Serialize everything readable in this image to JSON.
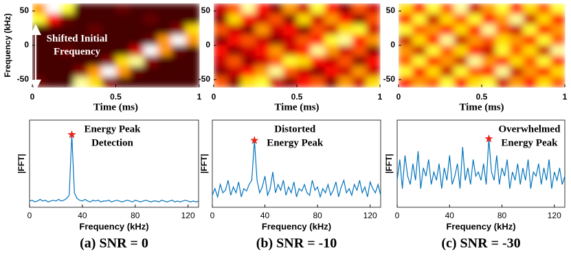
{
  "chart_data": [
    {
      "type": "heatmap",
      "colormap": "hot",
      "xlabel": "Time (ms)",
      "ylabel": "Frequency (kHz)",
      "xlim": [
        0,
        1
      ],
      "ylim": [
        -61,
        61
      ],
      "xticks": [
        0,
        0.5,
        1
      ],
      "yticks": [
        -50,
        0,
        50
      ],
      "annotation": [
        "Shifted Initial",
        "Frequency"
      ],
      "values": [
        [
          0.6,
          1,
          0.8,
          0.1,
          0.1,
          0.1,
          0.15,
          0.1,
          0.1,
          0.1,
          0.1,
          0.1
        ],
        [
          0.8,
          0.4,
          0.15,
          0.1,
          0.1,
          0.1,
          0.1,
          0.1,
          0.15,
          0.1,
          0.1,
          0.1
        ],
        [
          0.1,
          0.1,
          0.1,
          0.1,
          0.15,
          0.1,
          0.1,
          0.1,
          0.1,
          0.1,
          0.2,
          0.7
        ],
        [
          0.1,
          0.1,
          0.1,
          0.1,
          0.1,
          0.1,
          0.1,
          0.1,
          0.15,
          0.6,
          1,
          0.6
        ],
        [
          0.1,
          0.1,
          0.15,
          0.1,
          0.1,
          0.1,
          0.1,
          0.3,
          1,
          0.6,
          0.15,
          0.1
        ],
        [
          0.1,
          0.1,
          0.1,
          0.1,
          0.1,
          0.2,
          0.7,
          0.9,
          0.2,
          0.1,
          0.1,
          0.1
        ],
        [
          0.1,
          0.1,
          0.1,
          0.2,
          0.6,
          1,
          0.6,
          0.15,
          0.1,
          0.1,
          0.1,
          0.1
        ],
        [
          0.15,
          0.1,
          0.1,
          0.9,
          0.7,
          0.2,
          0.1,
          0.1,
          0.1,
          0.1,
          0.1,
          0.1
        ]
      ]
    },
    {
      "type": "heatmap",
      "colormap": "hot",
      "xlabel": "Time (ms)",
      "xlim": [
        0,
        1
      ],
      "ylim": [
        -61,
        61
      ],
      "xticks": [
        0,
        0.5,
        1
      ],
      "yticks": [
        -50,
        0,
        50
      ],
      "values": [
        [
          0.3,
          0.5,
          0.9,
          0.4,
          0.2,
          0.6,
          0.3,
          0.8,
          0.4,
          0.2,
          0.5,
          0.3
        ],
        [
          0.2,
          0.7,
          0.4,
          0.3,
          0.5,
          0.2,
          0.7,
          0.3,
          0.6,
          0.4,
          0.2,
          0.5
        ],
        [
          0.5,
          0.3,
          0.2,
          0.6,
          0.3,
          0.4,
          0.2,
          0.5,
          0.3,
          0.7,
          0.8,
          0.3
        ],
        [
          0.2,
          0.4,
          0.5,
          0.3,
          0.2,
          0.3,
          0.5,
          0.4,
          0.8,
          0.9,
          0.4,
          0.6
        ],
        [
          0.4,
          0.2,
          0.3,
          0.4,
          0.6,
          0.3,
          0.4,
          0.9,
          0.6,
          0.3,
          0.5,
          0.2
        ],
        [
          0.3,
          0.5,
          0.2,
          0.3,
          0.5,
          0.8,
          0.7,
          0.4,
          0.3,
          0.5,
          0.2,
          0.4
        ],
        [
          0.2,
          0.3,
          0.4,
          0.6,
          0.9,
          0.5,
          0.3,
          0.2,
          0.4,
          0.3,
          0.6,
          0.3
        ],
        [
          0.5,
          0.2,
          0.7,
          0.8,
          0.3,
          0.2,
          0.4,
          0.5,
          0.2,
          0.6,
          0.3,
          0.7
        ]
      ]
    },
    {
      "type": "heatmap",
      "colormap": "hot",
      "xlabel": "Time (ms)",
      "xlim": [
        0,
        1
      ],
      "ylim": [
        -61,
        61
      ],
      "xticks": [
        0,
        0.5,
        1
      ],
      "yticks": [
        -50,
        0,
        50
      ],
      "values": [
        [
          0.7,
          0.4,
          0.8,
          0.5,
          0.9,
          0.3,
          0.6,
          0.8,
          0.4,
          0.7,
          0.5,
          0.8
        ],
        [
          0.4,
          0.8,
          0.3,
          0.7,
          0.5,
          0.8,
          0.4,
          0.6,
          0.9,
          0.3,
          0.7,
          0.4
        ],
        [
          0.8,
          0.5,
          0.6,
          0.4,
          0.7,
          0.4,
          0.9,
          0.5,
          0.3,
          0.8,
          0.4,
          0.6
        ],
        [
          0.3,
          0.7,
          0.4,
          0.9,
          0.3,
          0.6,
          0.5,
          0.7,
          0.6,
          0.4,
          0.8,
          0.5
        ],
        [
          0.6,
          0.3,
          0.8,
          0.5,
          0.7,
          0.4,
          0.3,
          0.8,
          0.5,
          0.7,
          0.3,
          0.9
        ],
        [
          0.5,
          0.8,
          0.4,
          0.6,
          0.3,
          0.9,
          0.6,
          0.4,
          0.7,
          0.5,
          0.8,
          0.4
        ],
        [
          0.8,
          0.4,
          0.7,
          0.3,
          0.8,
          0.5,
          0.4,
          0.9,
          0.3,
          0.6,
          0.4,
          0.7
        ],
        [
          0.4,
          0.6,
          0.5,
          0.8,
          0.4,
          0.7,
          0.8,
          0.3,
          0.6,
          0.4,
          0.7,
          0.5
        ]
      ]
    },
    {
      "type": "line",
      "xlabel": "Frequency (kHz)",
      "ylabel": "|FFT|",
      "caption": "(a) SNR = 0",
      "annotation": [
        "Energy Peak",
        "Detection"
      ],
      "color": "#0072bd",
      "star_color": "#e8261c",
      "star_index": 16,
      "xlim": [
        0,
        128
      ],
      "ylim": [
        0,
        1
      ],
      "xticks": [
        0,
        40,
        80,
        120
      ],
      "x": [
        0,
        2,
        4,
        6,
        8,
        10,
        12,
        14,
        16,
        18,
        20,
        22,
        24,
        26,
        28,
        30,
        32,
        34,
        36,
        38,
        40,
        42,
        44,
        46,
        48,
        50,
        52,
        54,
        56,
        58,
        60,
        62,
        64,
        66,
        68,
        70,
        72,
        74,
        76,
        78,
        80,
        82,
        84,
        86,
        88,
        90,
        92,
        94,
        96,
        98,
        100,
        102,
        104,
        106,
        108,
        110,
        112,
        114,
        116,
        118,
        120,
        122,
        124,
        126,
        128
      ],
      "values": [
        0.05,
        0.06,
        0.04,
        0.05,
        0.07,
        0.05,
        0.06,
        0.04,
        0.05,
        0.06,
        0.05,
        0.07,
        0.05,
        0.06,
        0.08,
        0.12,
        0.85,
        0.15,
        0.08,
        0.06,
        0.05,
        0.07,
        0.05,
        0.04,
        0.06,
        0.05,
        0.06,
        0.04,
        0.05,
        0.05,
        0.06,
        0.04,
        0.05,
        0.06,
        0.05,
        0.04,
        0.05,
        0.06,
        0.05,
        0.04,
        0.06,
        0.05,
        0.04,
        0.05,
        0.06,
        0.05,
        0.04,
        0.05,
        0.05,
        0.04,
        0.06,
        0.05,
        0.04,
        0.05,
        0.06,
        0.04,
        0.05,
        0.04,
        0.05,
        0.06,
        0.05,
        0.04,
        0.05,
        0.04,
        0.05
      ]
    },
    {
      "type": "line",
      "xlabel": "Frequency (kHz)",
      "ylabel": "|FFT|",
      "caption": "(b) SNR = -10",
      "annotation": [
        "Distorted",
        "Energy Peak"
      ],
      "color": "#0072bd",
      "star_color": "#e8261c",
      "star_index": 16,
      "xlim": [
        0,
        128
      ],
      "ylim": [
        0,
        1
      ],
      "xticks": [
        0,
        40,
        80,
        120
      ],
      "x": [
        0,
        2,
        4,
        6,
        8,
        10,
        12,
        14,
        16,
        18,
        20,
        22,
        24,
        26,
        28,
        30,
        32,
        34,
        36,
        38,
        40,
        42,
        44,
        46,
        48,
        50,
        52,
        54,
        56,
        58,
        60,
        62,
        64,
        66,
        68,
        70,
        72,
        74,
        76,
        78,
        80,
        82,
        84,
        86,
        88,
        90,
        92,
        94,
        96,
        98,
        100,
        102,
        104,
        106,
        108,
        110,
        112,
        114,
        116,
        118,
        120,
        122,
        124,
        126,
        128
      ],
      "values": [
        0.12,
        0.2,
        0.1,
        0.25,
        0.15,
        0.18,
        0.3,
        0.12,
        0.22,
        0.15,
        0.28,
        0.1,
        0.2,
        0.17,
        0.25,
        0.3,
        0.78,
        0.3,
        0.15,
        0.22,
        0.35,
        0.12,
        0.2,
        0.4,
        0.15,
        0.25,
        0.18,
        0.3,
        0.12,
        0.22,
        0.15,
        0.28,
        0.1,
        0.2,
        0.17,
        0.25,
        0.15,
        0.12,
        0.3,
        0.18,
        0.22,
        0.1,
        0.2,
        0.15,
        0.25,
        0.12,
        0.18,
        0.28,
        0.1,
        0.22,
        0.3,
        0.15,
        0.2,
        0.12,
        0.25,
        0.18,
        0.3,
        0.15,
        0.22,
        0.1,
        0.28,
        0.2,
        0.15,
        0.25,
        0.12
      ]
    },
    {
      "type": "line",
      "xlabel": "Frequency (kHz)",
      "ylabel": "|FFT|",
      "caption": "(c) SNR = -30",
      "annotation": [
        "Overwhelmed",
        "Energy Peak"
      ],
      "color": "#0072bd",
      "star_color": "#e8261c",
      "star_index": 35,
      "xlim": [
        0,
        128
      ],
      "ylim": [
        0,
        1
      ],
      "xticks": [
        0,
        40,
        80,
        120
      ],
      "x": [
        0,
        2,
        4,
        6,
        8,
        10,
        12,
        14,
        16,
        18,
        20,
        22,
        24,
        26,
        28,
        30,
        32,
        34,
        36,
        38,
        40,
        42,
        44,
        46,
        48,
        50,
        52,
        54,
        56,
        58,
        60,
        62,
        64,
        66,
        68,
        70,
        72,
        74,
        76,
        78,
        80,
        82,
        84,
        86,
        88,
        90,
        92,
        94,
        96,
        98,
        100,
        102,
        104,
        106,
        108,
        110,
        112,
        114,
        116,
        118,
        120,
        122,
        124,
        126,
        128
      ],
      "values": [
        0.3,
        0.55,
        0.2,
        0.6,
        0.35,
        0.25,
        0.5,
        0.3,
        0.65,
        0.2,
        0.45,
        0.35,
        0.55,
        0.25,
        0.4,
        0.3,
        0.5,
        0.2,
        0.45,
        0.3,
        0.6,
        0.25,
        0.35,
        0.5,
        0.2,
        0.7,
        0.3,
        0.45,
        0.25,
        0.55,
        0.35,
        0.4,
        0.3,
        0.5,
        0.25,
        0.8,
        0.4,
        0.3,
        0.6,
        0.25,
        0.45,
        0.35,
        0.55,
        0.2,
        0.4,
        0.3,
        0.5,
        0.25,
        0.45,
        0.3,
        0.55,
        0.2,
        0.4,
        0.35,
        0.5,
        0.25,
        0.45,
        0.3,
        0.55,
        0.2,
        0.4,
        0.3,
        0.45,
        0.25,
        0.35
      ]
    }
  ]
}
